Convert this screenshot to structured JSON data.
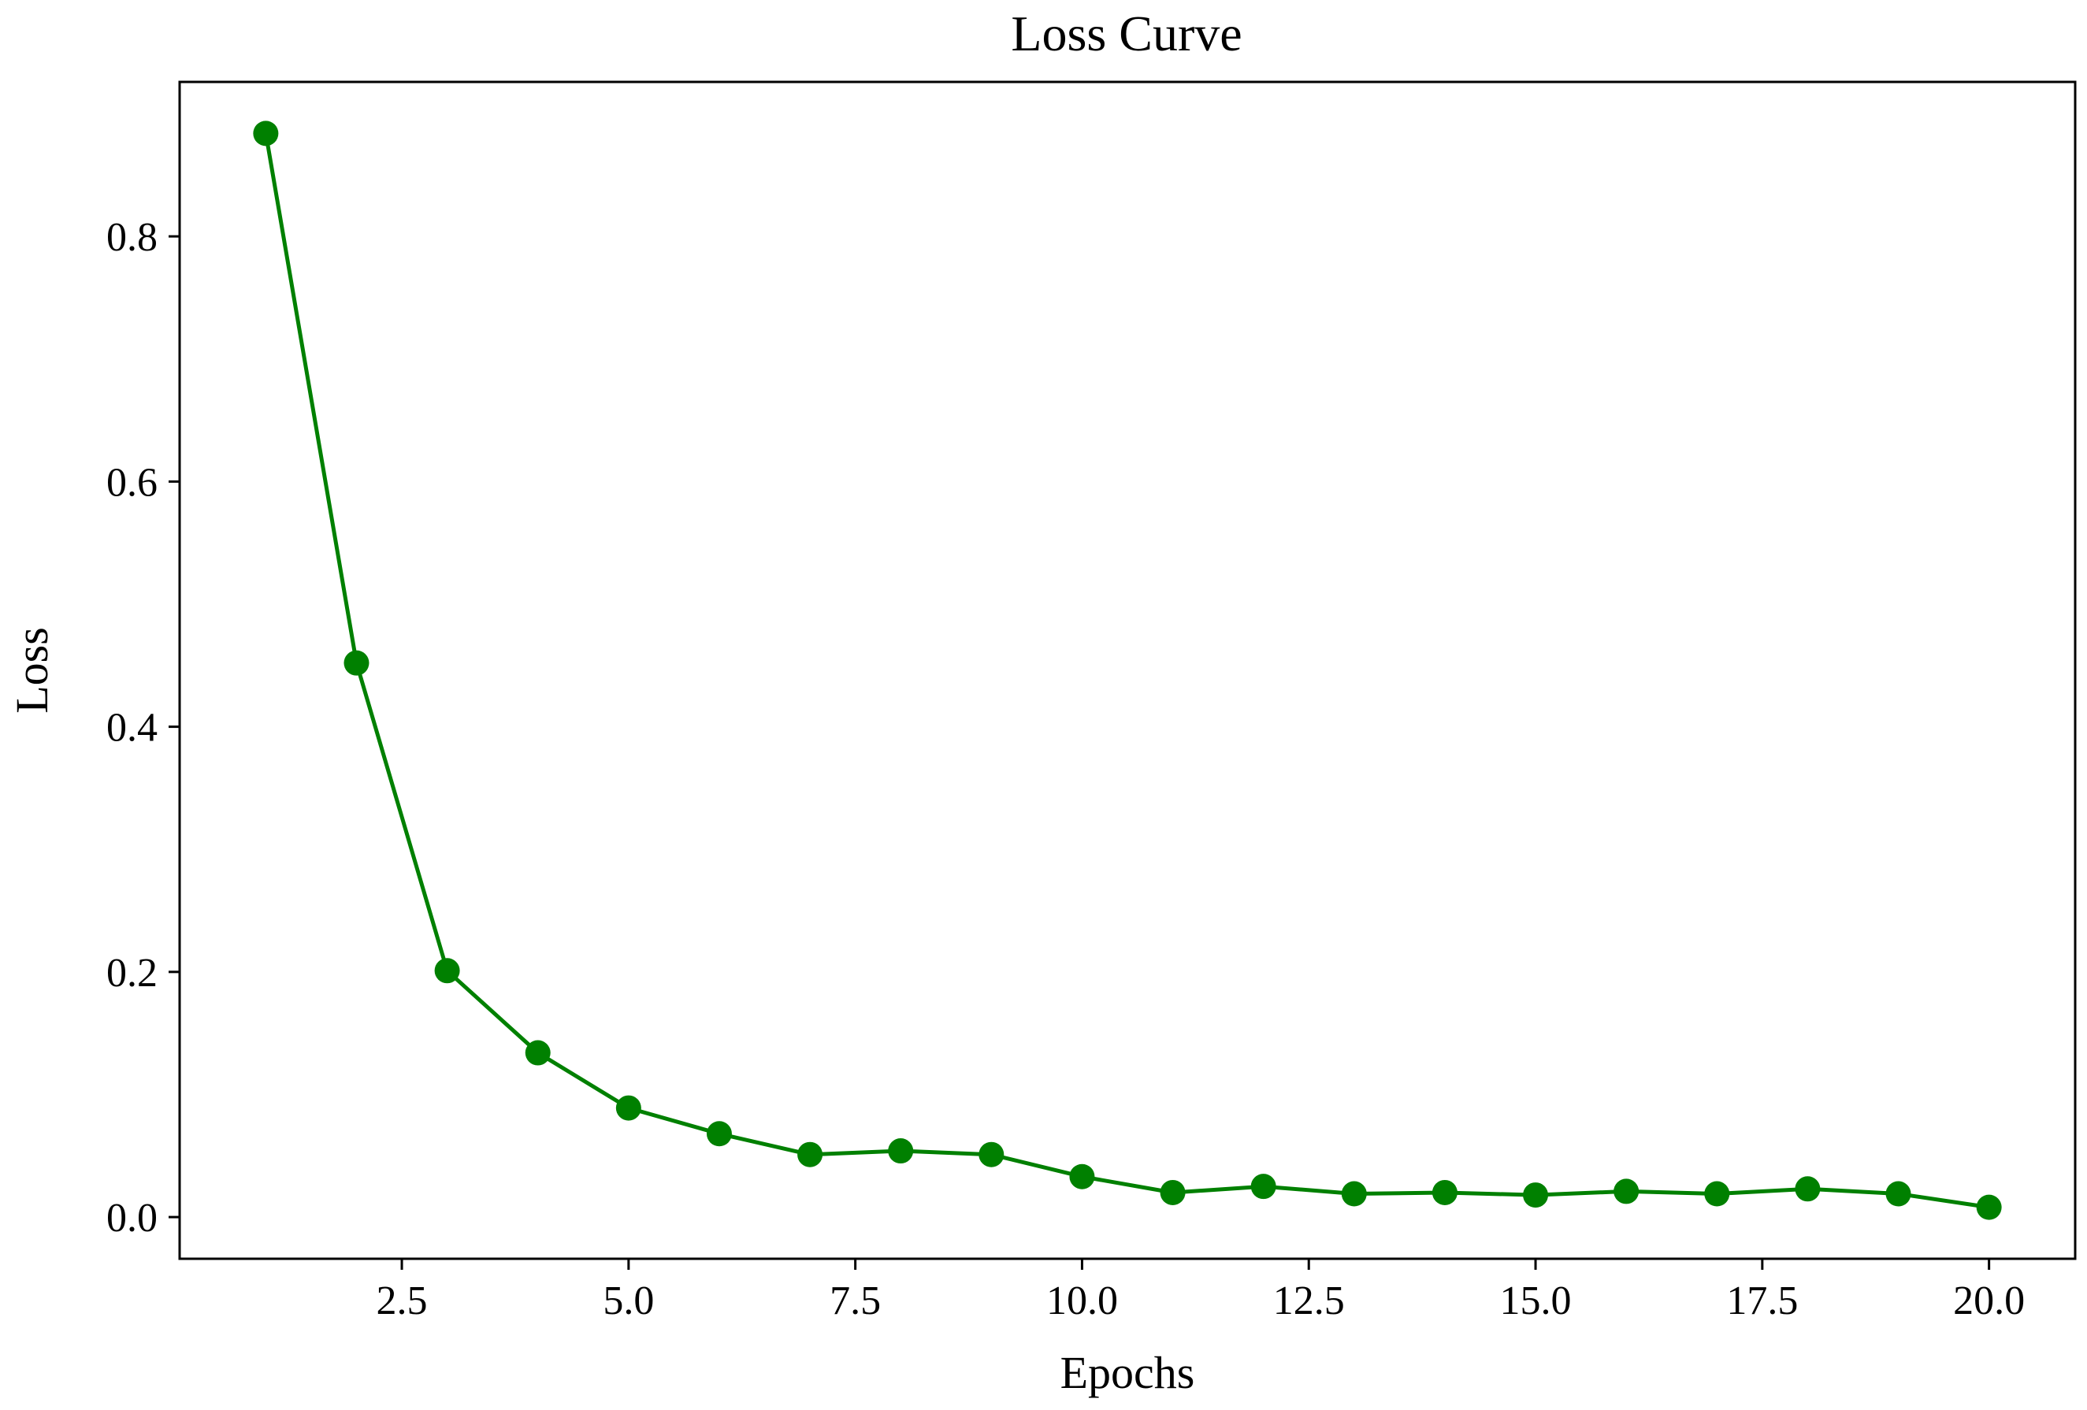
{
  "chart_data": {
    "type": "line",
    "title": "Loss Curve",
    "xlabel": "Epochs",
    "ylabel": "Loss",
    "xlim": [
      0.05,
      20.95
    ],
    "ylim": [
      -0.034,
      0.926
    ],
    "xticks": [
      2.5,
      5.0,
      7.5,
      10.0,
      12.5,
      15.0,
      17.5,
      20.0
    ],
    "xtick_labels": [
      "2.5",
      "5.0",
      "7.5",
      "10.0",
      "12.5",
      "15.0",
      "17.5",
      "20.0"
    ],
    "yticks": [
      0.0,
      0.2,
      0.4,
      0.6,
      0.8
    ],
    "ytick_labels": [
      "0.0",
      "0.2",
      "0.4",
      "0.6",
      "0.8"
    ],
    "grid": false,
    "series": [
      {
        "color": "#008000",
        "marker": "circle",
        "x": [
          1,
          2,
          3,
          4,
          5,
          6,
          7,
          8,
          9,
          10,
          11,
          12,
          13,
          14,
          15,
          16,
          17,
          18,
          19,
          20
        ],
        "y": [
          0.884,
          0.452,
          0.201,
          0.134,
          0.089,
          0.068,
          0.051,
          0.054,
          0.051,
          0.033,
          0.02,
          0.025,
          0.019,
          0.02,
          0.018,
          0.021,
          0.019,
          0.023,
          0.019,
          0.008
        ]
      }
    ]
  }
}
